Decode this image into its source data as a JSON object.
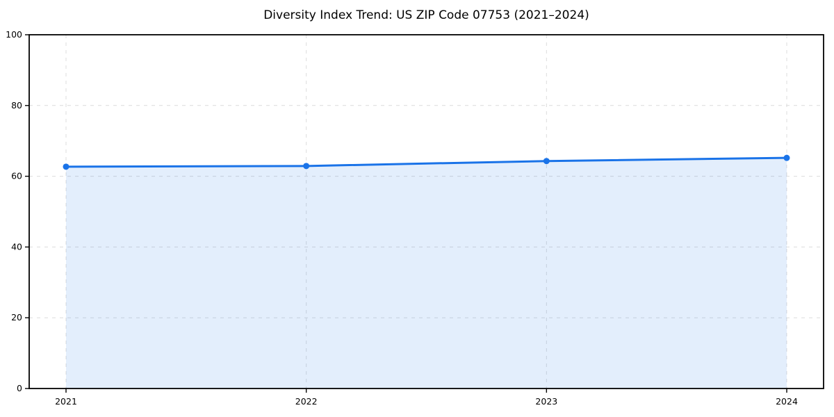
{
  "chart_data": {
    "type": "area",
    "title": "Diversity Index Trend: US ZIP Code 07753 (2021–2024)",
    "x": [
      2021,
      2022,
      2023,
      2024
    ],
    "x_tick_labels": [
      "2021",
      "2022",
      "2023",
      "2024"
    ],
    "series": [
      {
        "name": "Diversity Index",
        "values": [
          62.7,
          62.9,
          64.3,
          65.2
        ]
      }
    ],
    "xlabel": "",
    "ylabel": "",
    "ylim": [
      0,
      100
    ],
    "yticks": [
      0,
      20,
      40,
      60,
      80,
      100
    ],
    "grid": true,
    "grid_style": "dashed",
    "legend": "none",
    "colors": {
      "line": "#1a73e8",
      "marker": "#1a73e8",
      "fill": "rgba(26,115,232,0.12)",
      "grid": "#dcdcdc",
      "axis": "#000000",
      "tick_label": "#000000",
      "background": "#ffffff"
    }
  }
}
